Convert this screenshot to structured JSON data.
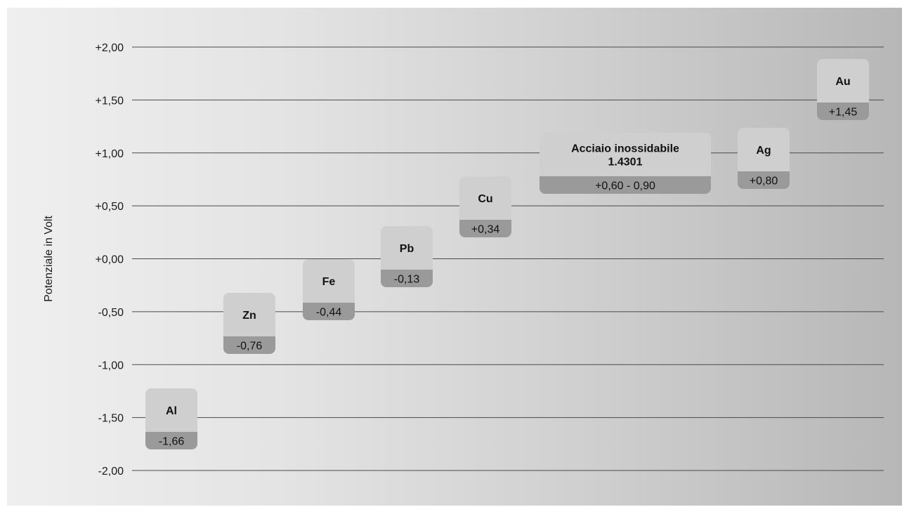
{
  "chart_data": {
    "type": "bar",
    "title": "",
    "ylabel": "Potenziale in Volt",
    "ylim": [
      -2.0,
      2.0
    ],
    "yticks": [
      {
        "value": 2.0,
        "label": "+2,00"
      },
      {
        "value": 1.5,
        "label": "+1,50"
      },
      {
        "value": 1.0,
        "label": "+1,00"
      },
      {
        "value": 0.5,
        "label": "+0,50"
      },
      {
        "value": 0.0,
        "label": "+0,00"
      },
      {
        "value": -0.5,
        "label": "-0,50"
      },
      {
        "value": -1.0,
        "label": "-1,00"
      },
      {
        "value": -1.5,
        "label": "-1,50"
      },
      {
        "value": -2.0,
        "label": "-2,00"
      }
    ],
    "grid": true,
    "items": [
      {
        "name": "Al",
        "value": -1.66,
        "label": "-1,66"
      },
      {
        "name": "Zn",
        "value": -0.76,
        "label": "-0,76"
      },
      {
        "name": "Fe",
        "value": -0.44,
        "label": "-0,44"
      },
      {
        "name": "Pb",
        "value": -0.13,
        "label": "-0,13"
      },
      {
        "name": "Cu",
        "value": 0.34,
        "label": "+0,34"
      },
      {
        "name": "Acciaio inossidabile 1.4301",
        "name_lines": [
          "Acciaio inossidabile",
          "1.4301"
        ],
        "value": 0.75,
        "range": [
          0.6,
          0.9
        ],
        "label": "+0,60 - 0,90"
      },
      {
        "name": "Ag",
        "value": 0.8,
        "label": "+0,80"
      },
      {
        "name": "Au",
        "value": 1.45,
        "label": "+1,45"
      }
    ],
    "colors": {
      "box_light": "#cfcfcf",
      "box_dark": "#9a9a9a",
      "grid": "#4a4a4a"
    }
  }
}
